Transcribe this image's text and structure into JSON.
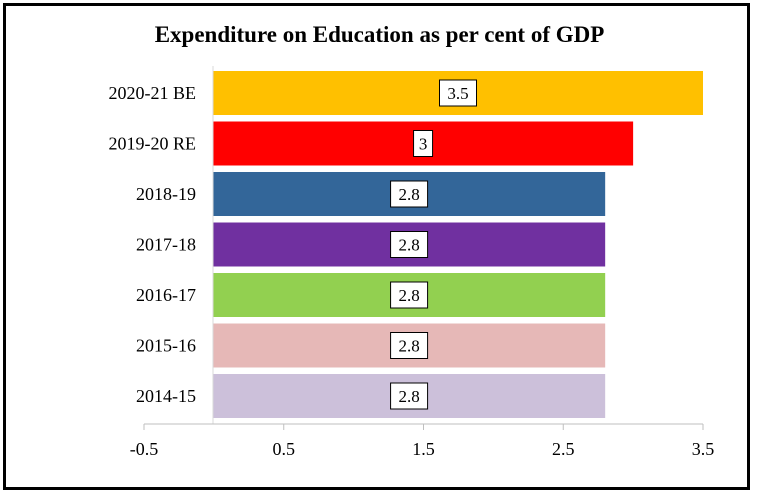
{
  "chart_data": {
    "type": "bar",
    "orientation": "horizontal",
    "title": "Expenditure on Education as per cent of GDP",
    "xlabel": "",
    "ylabel": "",
    "categories": [
      "2020-21 BE",
      "2019-20 RE",
      "2018-19",
      "2017-18",
      "2016-17",
      "2015-16",
      "2014-15"
    ],
    "values": [
      3.5,
      3,
      2.8,
      2.8,
      2.8,
      2.8,
      2.8
    ],
    "data_labels": [
      "3.5",
      "3",
      "2.8",
      "2.8",
      "2.8",
      "2.8",
      "2.8"
    ],
    "colors": [
      "#FFC000",
      "#FF0000",
      "#336699",
      "#7030A0",
      "#92D050",
      "#E6B8B7",
      "#CCC0DA"
    ],
    "xlim": [
      -0.5,
      3.5
    ],
    "xticks": [
      -0.5,
      0.5,
      1.5,
      2.5,
      3.5
    ],
    "xtick_labels": [
      "-0.5",
      "0.5",
      "1.5",
      "2.5",
      "3.5"
    ],
    "grid": false,
    "legend": "none"
  }
}
